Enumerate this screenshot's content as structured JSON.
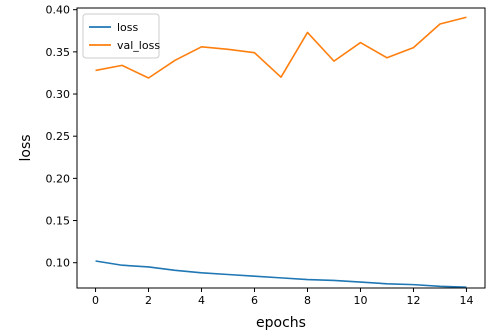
{
  "chart_data": {
    "type": "line",
    "title": "",
    "xlabel": "epochs",
    "ylabel": "loss",
    "xlim": [
      -0.7,
      14.7
    ],
    "ylim": [
      0.07,
      0.402
    ],
    "xticks": [
      0,
      2,
      4,
      6,
      8,
      10,
      12,
      14
    ],
    "yticks": [
      0.1,
      0.15,
      0.2,
      0.25,
      0.3,
      0.35,
      0.4
    ],
    "grid": false,
    "legend": "top-left",
    "x": [
      0,
      1,
      2,
      3,
      4,
      5,
      6,
      7,
      8,
      9,
      10,
      11,
      12,
      13,
      14
    ],
    "series": [
      {
        "name": "loss",
        "color": "#1f77b4",
        "values": [
          0.102,
          0.097,
          0.095,
          0.091,
          0.088,
          0.086,
          0.084,
          0.082,
          0.08,
          0.079,
          0.077,
          0.075,
          0.074,
          0.072,
          0.071
        ]
      },
      {
        "name": "val_loss",
        "color": "#ff7f0e",
        "values": [
          0.328,
          0.334,
          0.319,
          0.34,
          0.356,
          0.353,
          0.349,
          0.32,
          0.373,
          0.339,
          0.361,
          0.343,
          0.355,
          0.383,
          0.391
        ]
      }
    ]
  }
}
